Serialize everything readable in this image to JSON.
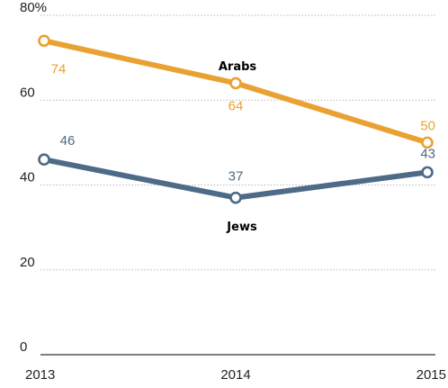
{
  "chart_data": {
    "type": "line",
    "x": [
      "2013",
      "2014",
      "2015"
    ],
    "ylim": [
      0,
      80
    ],
    "y_ticks": [
      "0",
      "20",
      "40",
      "60",
      "80%"
    ],
    "grid": true,
    "series": [
      {
        "name": "Arabs",
        "values": [
          74,
          64,
          50
        ],
        "labels": [
          "74",
          "64",
          "50"
        ],
        "color": "#e9a132"
      },
      {
        "name": "Jews",
        "values": [
          46,
          37,
          43
        ],
        "labels": [
          "46",
          "37",
          "43"
        ],
        "color": "#4d6a86"
      }
    ]
  }
}
